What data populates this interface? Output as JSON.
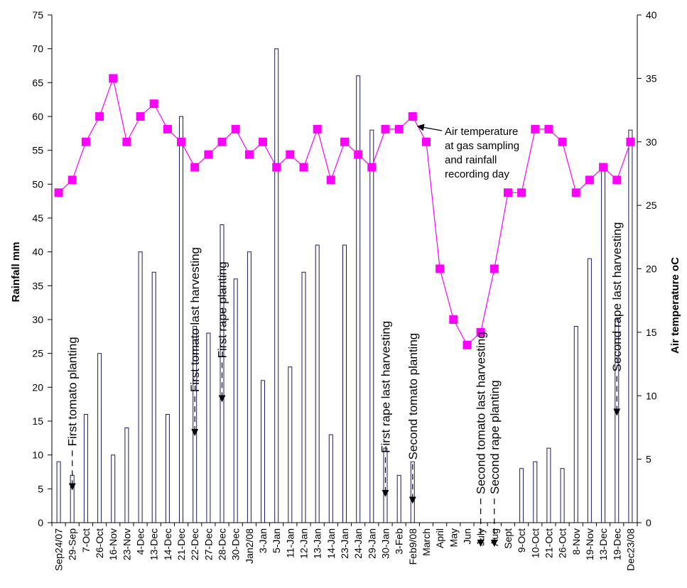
{
  "chart_data": {
    "type": "bar",
    "categories": [
      "Sep24/07",
      "29-Sep",
      "7-Oct",
      "26-Oct",
      "16-Nov",
      "23-Nov",
      "4-Dec",
      "13-Dec",
      "14-Dec",
      "21-Dec",
      "22-Dec",
      "27-Dec",
      "28-Dec",
      "30-Dec",
      "Jan2/08",
      "3-Jan",
      "5-Jan",
      "11-Jan",
      "12-Jan",
      "13-Jan",
      "14-Jan",
      "23-Jan",
      "24-Jan",
      "29-Jan",
      "30-Jan",
      "3-Feb",
      "Feb9/08",
      "March",
      "April",
      "May",
      "Jun",
      "July",
      "Aug",
      "Sept",
      "9-Oct",
      "10-Oct",
      "21-Oct",
      "26-Oct",
      "8-Nov",
      "19-Nov",
      "13-Dec",
      "19-Dec",
      "Dec23/08"
    ],
    "series": [
      {
        "type": "bar",
        "axis": "left",
        "values": [
          9,
          7,
          16,
          25,
          10,
          14,
          40,
          37,
          16,
          60,
          29,
          28,
          44,
          36,
          40,
          21,
          70,
          23,
          37,
          41,
          13,
          41,
          66,
          58,
          11,
          7,
          9,
          0,
          0,
          0,
          0,
          0,
          0,
          0,
          8,
          9,
          11,
          8,
          29,
          39,
          52,
          30,
          58
        ],
        "color": "#1a1a5e"
      },
      {
        "type": "line",
        "axis": "right",
        "values": [
          26,
          27,
          30,
          32,
          35,
          30,
          32,
          33,
          31,
          30,
          28,
          29,
          30,
          31,
          29,
          30,
          28,
          29,
          28,
          31,
          27,
          30,
          29,
          28,
          31,
          31,
          32,
          30,
          20,
          16,
          14,
          15,
          20,
          26,
          26,
          31,
          31,
          30,
          26,
          27,
          28,
          27,
          30
        ],
        "color": "#ff00ff"
      }
    ],
    "ylabel": "Rainfall mm",
    "y2label": "Air temperature oC",
    "ylim": [
      0,
      75
    ],
    "y2lim": [
      0,
      40
    ],
    "yticks": [
      0,
      5,
      10,
      15,
      20,
      25,
      30,
      35,
      40,
      45,
      50,
      55,
      60,
      65,
      70,
      75
    ],
    "y2ticks": [
      0,
      5,
      10,
      15,
      20,
      25,
      30,
      35,
      40
    ],
    "grid": false,
    "legend": "none",
    "annotations": [
      {
        "text": "First tomato planting",
        "category_index": 1,
        "arrow_to_value": 5
      },
      {
        "text": "First tomato last harvesting",
        "category_index": 10,
        "arrow_to_value": 13
      },
      {
        "text": "First rape planting",
        "category_index": 12,
        "arrow_to_value": 18
      },
      {
        "text": "First rape last harvesting",
        "category_index": 24,
        "arrow_to_value": 4
      },
      {
        "text": "Second tomato planting",
        "category_index": 26,
        "arrow_to_value": 3
      },
      {
        "text": "Second tomato last harvesting",
        "category_index": 31,
        "arrow_to_value": 0
      },
      {
        "text": "Second rape planting",
        "category_index": 32,
        "arrow_to_value": 0
      },
      {
        "text": "Second rape last harvesting",
        "category_index": 41,
        "arrow_to_value": 16
      }
    ],
    "note": {
      "lines": [
        "Air temperature",
        "at gas sampling",
        "and rainfall",
        "recording day"
      ],
      "arrow_target_index": 26
    }
  }
}
